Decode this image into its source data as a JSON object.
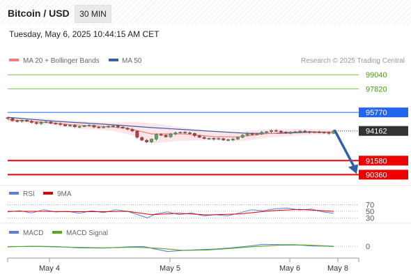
{
  "header": {
    "title": "Bitcoin / USD",
    "timeframe": "30 MIN",
    "datetime": "Tuesday, May 6, 2025 10:44:15 AM CET"
  },
  "colors": {
    "support": "#ee0000",
    "resistance_target": "#88bb55",
    "ma50": "#3b5fa0",
    "ma20": "#f08080",
    "bands": "#fbdde2",
    "candle_up": "#55aa55",
    "candle_down": "#cc3333",
    "price_label": "#333333",
    "pivot_label": "#2266ee",
    "rsi": "#5b7fd8",
    "rsi_ma": "#dd0000",
    "macd": "#5b7fd8",
    "macd_signal": "#55aa22",
    "arrow": "#2e5fa8"
  },
  "chart_data": [
    {
      "type": "candlestick",
      "name": "price",
      "legend": [
        {
          "label": "MA 20 + Bollinger Bands",
          "color": "#f08080"
        },
        {
          "label": "MA 50",
          "color": "#3b5fa0"
        }
      ],
      "copyright": "Research © 2025 Trading Central",
      "x_ticks": [
        "May 4",
        "May 5",
        "May 6",
        "May 8"
      ],
      "ylim": [
        89900,
        99600
      ],
      "levels": [
        {
          "value": 99040,
          "label": "99040",
          "role": "target"
        },
        {
          "value": 97820,
          "label": "97820",
          "role": "target"
        },
        {
          "value": 95770,
          "label": "95770",
          "role": "pivot"
        },
        {
          "value": 94162,
          "label": "94162",
          "role": "last"
        },
        {
          "value": 91580,
          "label": "91580",
          "role": "support"
        },
        {
          "value": 90360,
          "label": "90360",
          "role": "support"
        }
      ],
      "close_points": [
        {
          "x": 0,
          "y": 95250
        },
        {
          "x": 6,
          "y": 95050
        },
        {
          "x": 12,
          "y": 95000
        },
        {
          "x": 18,
          "y": 95100
        },
        {
          "x": 24,
          "y": 95000
        },
        {
          "x": 30,
          "y": 94900
        },
        {
          "x": 36,
          "y": 94800
        },
        {
          "x": 42,
          "y": 94920
        },
        {
          "x": 48,
          "y": 94950
        },
        {
          "x": 54,
          "y": 94830
        },
        {
          "x": 60,
          "y": 94800
        },
        {
          "x": 66,
          "y": 94720
        },
        {
          "x": 72,
          "y": 94600
        },
        {
          "x": 78,
          "y": 94650
        },
        {
          "x": 84,
          "y": 94520
        },
        {
          "x": 90,
          "y": 94550
        },
        {
          "x": 96,
          "y": 94600
        },
        {
          "x": 102,
          "y": 94650
        },
        {
          "x": 108,
          "y": 94500
        },
        {
          "x": 114,
          "y": 94480
        },
        {
          "x": 120,
          "y": 94500
        },
        {
          "x": 126,
          "y": 94580
        },
        {
          "x": 132,
          "y": 94600
        },
        {
          "x": 138,
          "y": 94500
        },
        {
          "x": 144,
          "y": 94400
        },
        {
          "x": 150,
          "y": 94300
        },
        {
          "x": 156,
          "y": 94150
        },
        {
          "x": 162,
          "y": 93600
        },
        {
          "x": 168,
          "y": 93350
        },
        {
          "x": 174,
          "y": 93200
        },
        {
          "x": 180,
          "y": 93450
        },
        {
          "x": 186,
          "y": 93850
        },
        {
          "x": 192,
          "y": 93800
        },
        {
          "x": 198,
          "y": 93650
        },
        {
          "x": 204,
          "y": 93900
        },
        {
          "x": 210,
          "y": 94000
        },
        {
          "x": 216,
          "y": 94050
        },
        {
          "x": 222,
          "y": 94000
        },
        {
          "x": 228,
          "y": 93950
        },
        {
          "x": 234,
          "y": 93750
        },
        {
          "x": 240,
          "y": 93600
        },
        {
          "x": 246,
          "y": 93500
        },
        {
          "x": 252,
          "y": 93520
        },
        {
          "x": 258,
          "y": 93450
        },
        {
          "x": 264,
          "y": 93500
        },
        {
          "x": 270,
          "y": 93380
        },
        {
          "x": 276,
          "y": 93400
        },
        {
          "x": 282,
          "y": 93450
        },
        {
          "x": 288,
          "y": 93600
        },
        {
          "x": 294,
          "y": 93800
        },
        {
          "x": 300,
          "y": 93950
        },
        {
          "x": 306,
          "y": 93850
        },
        {
          "x": 312,
          "y": 93900
        },
        {
          "x": 318,
          "y": 94050
        },
        {
          "x": 324,
          "y": 94100
        },
        {
          "x": 330,
          "y": 94200
        },
        {
          "x": 336,
          "y": 94150
        },
        {
          "x": 342,
          "y": 94050
        },
        {
          "x": 348,
          "y": 94000
        },
        {
          "x": 354,
          "y": 94020
        },
        {
          "x": 360,
          "y": 94100
        },
        {
          "x": 366,
          "y": 94150
        },
        {
          "x": 372,
          "y": 94100
        },
        {
          "x": 378,
          "y": 94050
        },
        {
          "x": 384,
          "y": 94070
        },
        {
          "x": 390,
          "y": 94050
        },
        {
          "x": 396,
          "y": 94030
        },
        {
          "x": 402,
          "y": 93950
        },
        {
          "x": 408,
          "y": 94162
        }
      ],
      "ma20_points": [
        {
          "x": 0,
          "y": 95150
        },
        {
          "x": 40,
          "y": 94950
        },
        {
          "x": 80,
          "y": 94700
        },
        {
          "x": 120,
          "y": 94550
        },
        {
          "x": 150,
          "y": 94400
        },
        {
          "x": 180,
          "y": 93900
        },
        {
          "x": 220,
          "y": 93900
        },
        {
          "x": 260,
          "y": 93650
        },
        {
          "x": 290,
          "y": 93650
        },
        {
          "x": 320,
          "y": 93900
        },
        {
          "x": 350,
          "y": 94050
        },
        {
          "x": 380,
          "y": 94100
        },
        {
          "x": 408,
          "y": 94050
        }
      ],
      "ma50_points": [
        {
          "x": 0,
          "y": 95350
        },
        {
          "x": 60,
          "y": 95000
        },
        {
          "x": 120,
          "y": 94750
        },
        {
          "x": 180,
          "y": 94450
        },
        {
          "x": 240,
          "y": 94200
        },
        {
          "x": 300,
          "y": 93950
        },
        {
          "x": 340,
          "y": 93950
        },
        {
          "x": 380,
          "y": 94050
        },
        {
          "x": 408,
          "y": 94050
        }
      ],
      "band_points": [
        {
          "x": 0,
          "upper": 95300,
          "lower": 94950
        },
        {
          "x": 50,
          "upper": 95200,
          "lower": 94700
        },
        {
          "x": 90,
          "upper": 95000,
          "lower": 94350
        },
        {
          "x": 130,
          "upper": 94900,
          "lower": 94200
        },
        {
          "x": 160,
          "upper": 94950,
          "lower": 93700
        },
        {
          "x": 185,
          "upper": 94800,
          "lower": 93100
        },
        {
          "x": 215,
          "upper": 94500,
          "lower": 93300
        },
        {
          "x": 250,
          "upper": 94200,
          "lower": 93350
        },
        {
          "x": 290,
          "upper": 94100,
          "lower": 93250
        },
        {
          "x": 330,
          "upper": 94350,
          "lower": 93600
        },
        {
          "x": 370,
          "upper": 94350,
          "lower": 93800
        },
        {
          "x": 408,
          "upper": 94250,
          "lower": 93850
        }
      ],
      "forecast_arrow": {
        "from": 94162,
        "to": 90600
      }
    },
    {
      "type": "line",
      "name": "rsi",
      "legend": [
        {
          "label": "RSI",
          "color": "#5b7fd8"
        },
        {
          "label": "9MA",
          "color": "#dd0000"
        }
      ],
      "y_ticks": [
        "70",
        "50",
        "30"
      ],
      "ylim": [
        20,
        80
      ],
      "levels": [
        70,
        50,
        30
      ],
      "series": [
        {
          "name": "RSI",
          "points": [
            {
              "x": 0,
              "y": 48
            },
            {
              "x": 15,
              "y": 52
            },
            {
              "x": 30,
              "y": 45
            },
            {
              "x": 45,
              "y": 55
            },
            {
              "x": 60,
              "y": 48
            },
            {
              "x": 75,
              "y": 50
            },
            {
              "x": 90,
              "y": 44
            },
            {
              "x": 105,
              "y": 52
            },
            {
              "x": 120,
              "y": 46
            },
            {
              "x": 135,
              "y": 55
            },
            {
              "x": 150,
              "y": 50
            },
            {
              "x": 165,
              "y": 38
            },
            {
              "x": 175,
              "y": 30
            },
            {
              "x": 185,
              "y": 42
            },
            {
              "x": 200,
              "y": 48
            },
            {
              "x": 215,
              "y": 40
            },
            {
              "x": 230,
              "y": 45
            },
            {
              "x": 245,
              "y": 36
            },
            {
              "x": 260,
              "y": 40
            },
            {
              "x": 275,
              "y": 36
            },
            {
              "x": 290,
              "y": 45
            },
            {
              "x": 305,
              "y": 55
            },
            {
              "x": 320,
              "y": 52
            },
            {
              "x": 335,
              "y": 58
            },
            {
              "x": 350,
              "y": 60
            },
            {
              "x": 365,
              "y": 54
            },
            {
              "x": 380,
              "y": 57
            },
            {
              "x": 395,
              "y": 48
            },
            {
              "x": 408,
              "y": 44
            }
          ]
        },
        {
          "name": "9MA",
          "points": [
            {
              "x": 0,
              "y": 50
            },
            {
              "x": 40,
              "y": 50
            },
            {
              "x": 80,
              "y": 49
            },
            {
              "x": 120,
              "y": 49
            },
            {
              "x": 150,
              "y": 50
            },
            {
              "x": 180,
              "y": 40
            },
            {
              "x": 215,
              "y": 44
            },
            {
              "x": 250,
              "y": 39
            },
            {
              "x": 290,
              "y": 42
            },
            {
              "x": 330,
              "y": 52
            },
            {
              "x": 365,
              "y": 56
            },
            {
              "x": 395,
              "y": 52
            },
            {
              "x": 408,
              "y": 50
            }
          ]
        }
      ]
    },
    {
      "type": "line",
      "name": "macd",
      "legend": [
        {
          "label": "MACD",
          "color": "#5b7fd8"
        },
        {
          "label": "MACD Signal",
          "color": "#55aa22"
        }
      ],
      "y_ticks": [
        "0"
      ],
      "ylim": [
        -1,
        1
      ],
      "series": [
        {
          "name": "MACD",
          "points": [
            {
              "x": 0,
              "y": -0.1
            },
            {
              "x": 30,
              "y": 0.0
            },
            {
              "x": 60,
              "y": -0.05
            },
            {
              "x": 90,
              "y": -0.25
            },
            {
              "x": 120,
              "y": -0.3
            },
            {
              "x": 150,
              "y": -0.1
            },
            {
              "x": 170,
              "y": -0.05
            },
            {
              "x": 185,
              "y": -0.45
            },
            {
              "x": 200,
              "y": -0.85
            },
            {
              "x": 220,
              "y": -0.65
            },
            {
              "x": 240,
              "y": -0.55
            },
            {
              "x": 260,
              "y": -0.45
            },
            {
              "x": 280,
              "y": -0.25
            },
            {
              "x": 300,
              "y": 0.0
            },
            {
              "x": 320,
              "y": 0.3
            },
            {
              "x": 340,
              "y": 0.25
            },
            {
              "x": 360,
              "y": 0.25
            },
            {
              "x": 380,
              "y": 0.05
            },
            {
              "x": 400,
              "y": 0.0
            },
            {
              "x": 408,
              "y": -0.05
            }
          ]
        },
        {
          "name": "MACD Signal",
          "points": [
            {
              "x": 0,
              "y": -0.05
            },
            {
              "x": 40,
              "y": -0.05
            },
            {
              "x": 80,
              "y": -0.15
            },
            {
              "x": 120,
              "y": -0.25
            },
            {
              "x": 160,
              "y": -0.15
            },
            {
              "x": 190,
              "y": -0.35
            },
            {
              "x": 220,
              "y": -0.65
            },
            {
              "x": 250,
              "y": -0.6
            },
            {
              "x": 280,
              "y": -0.35
            },
            {
              "x": 310,
              "y": -0.05
            },
            {
              "x": 340,
              "y": 0.15
            },
            {
              "x": 370,
              "y": 0.2
            },
            {
              "x": 400,
              "y": 0.05
            },
            {
              "x": 408,
              "y": 0.0
            }
          ]
        }
      ]
    }
  ]
}
